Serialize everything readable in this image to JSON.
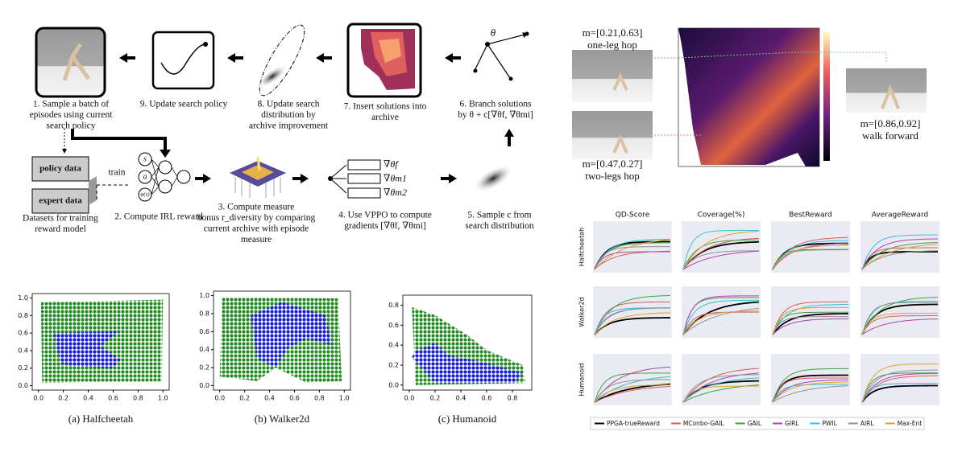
{
  "pipeline": {
    "steps": [
      {
        "lines": [
          "1. Sample a batch of",
          "episodes using current",
          "search policy"
        ]
      },
      {
        "lines": [
          "2. Compute IRL reward"
        ]
      },
      {
        "lines": [
          "3. Compute measure",
          "bonus r_diversity by comparing",
          "current archive with episode",
          "measure"
        ]
      },
      {
        "lines": [
          "4. Use VPPO to compute",
          "gradients [∇θf, ∇θmi]"
        ]
      },
      {
        "lines": [
          "5. Sample c from",
          "search distribution"
        ]
      },
      {
        "lines": [
          "6. Branch solutions",
          "by θ + c[∇θf, ∇θmi]"
        ]
      },
      {
        "lines": [
          "7. Insert solutions into",
          "archive"
        ]
      },
      {
        "lines": [
          "8. Update search",
          "distribution by",
          "archive improvement"
        ]
      },
      {
        "lines": [
          "9. Update search policy"
        ]
      }
    ],
    "policy_data": "policy data",
    "expert_data": "expert data",
    "train": "train",
    "datasets": [
      "Datasets for training",
      "reward model"
    ],
    "net_inputs": [
      "s",
      "a",
      "φ(s)"
    ],
    "gradients": [
      "∇θf",
      "∇θm1",
      "∇θm2"
    ],
    "theta": "θ"
  },
  "scatter_plots": [
    {
      "caption": "(a)  Halfcheetah",
      "xticks": [
        {
          "value": 0,
          "label": "0.0"
        },
        {
          "value": 0.2,
          "label": "0.2"
        },
        {
          "value": 0.4,
          "label": "0.4"
        },
        {
          "value": 0.6,
          "label": "0.6"
        },
        {
          "value": 0.8,
          "label": "0.8"
        },
        {
          "value": 1,
          "label": "1.0"
        }
      ],
      "yticks": [
        {
          "value": 0,
          "label": "0.0"
        },
        {
          "value": 0.2,
          "label": "0.2"
        },
        {
          "value": 0.4,
          "label": "0.4"
        },
        {
          "value": 0.6,
          "label": "0.6"
        },
        {
          "value": 0.8,
          "label": "0.8"
        },
        {
          "value": 1,
          "label": "1.0"
        }
      ],
      "xlim": [
        -0.05,
        1.05
      ],
      "ylim": [
        -0.05,
        1.05
      ]
    },
    {
      "caption": "(b)  Walker2d",
      "xticks": [
        {
          "value": 0,
          "label": "0.0"
        },
        {
          "value": 0.2,
          "label": "0.2"
        },
        {
          "value": 0.4,
          "label": "0.4"
        },
        {
          "value": 0.6,
          "label": "0.6"
        },
        {
          "value": 0.8,
          "label": "0.8"
        },
        {
          "value": 1,
          "label": "1.0"
        }
      ],
      "yticks": [
        {
          "value": 0,
          "label": "0.0"
        },
        {
          "value": 0.2,
          "label": "0.2"
        },
        {
          "value": 0.4,
          "label": "0.4"
        },
        {
          "value": 0.6,
          "label": "0.6"
        },
        {
          "value": 0.8,
          "label": "0.8"
        },
        {
          "value": 1,
          "label": "1.0"
        }
      ],
      "xlim": [
        -0.05,
        1.05
      ],
      "ylim": [
        -0.05,
        1.05
      ]
    },
    {
      "caption": "(c)  Humanoid",
      "xticks": [
        {
          "value": 0,
          "label": "0.0"
        },
        {
          "value": 0.2,
          "label": "0.2"
        },
        {
          "value": 0.4,
          "label": "0.4"
        },
        {
          "value": 0.6,
          "label": "0.6"
        },
        {
          "value": 0.8,
          "label": "0.8"
        }
      ],
      "yticks": [
        {
          "value": 0,
          "label": "0.0"
        },
        {
          "value": 0.2,
          "label": "0.2"
        },
        {
          "value": 0.4,
          "label": "0.4"
        },
        {
          "value": 0.6,
          "label": "0.6"
        },
        {
          "value": 0.8,
          "label": "0.8"
        }
      ],
      "xlim": [
        -0.05,
        0.95
      ],
      "ylim": [
        -0.05,
        0.9
      ]
    }
  ],
  "archive_map": {
    "annotations": [
      {
        "measure": "m=[0.21,0.63]",
        "label": "one-leg hop"
      },
      {
        "measure": "m=[0.47,0.27]",
        "label": "two-legs hop"
      },
      {
        "measure": "m=[0.86,0.92]",
        "label": "walk forward"
      }
    ]
  },
  "results_grid": {
    "columns": [
      "QD-Score",
      "Coverage(%)",
      "BestReward",
      "AverageReward"
    ],
    "rows": [
      "Halfcheetah",
      "Walker2d",
      "Humanoid"
    ],
    "legend": [
      {
        "name": "PPGA-trueReward",
        "color": "#000000"
      },
      {
        "name": "MConbo-GAIL",
        "color": "#d45d5d"
      },
      {
        "name": "GAIL",
        "color": "#3aa33a"
      },
      {
        "name": "GIRL",
        "color": "#b040b0"
      },
      {
        "name": "PWIL",
        "color": "#30c0d8"
      },
      {
        "name": "AIRL",
        "color": "#909090"
      },
      {
        "name": "Max-Ent",
        "color": "#e0a030"
      }
    ]
  }
}
